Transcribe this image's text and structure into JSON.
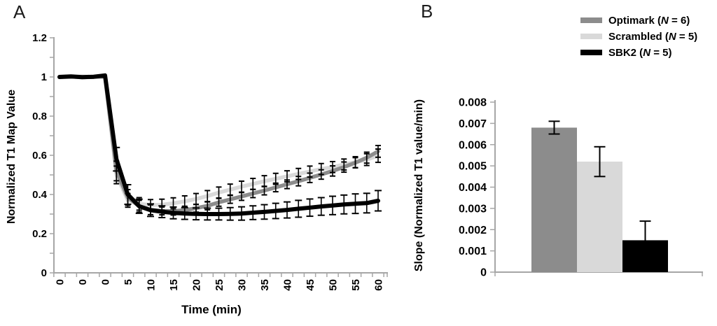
{
  "figure": {
    "panel_a_letter": "A",
    "panel_b_letter": "B"
  },
  "colors": {
    "axis": "#a6a6a6",
    "error_bar": "#000000",
    "optimark": "#8c8c8c",
    "scrambled": "#d9d9d9",
    "sbk2": "#000000"
  },
  "legend": {
    "items": [
      {
        "prefix": "Optimark (",
        "n": "N",
        "suffix": " = 6)",
        "color": "#8c8c8c"
      },
      {
        "prefix": "Scrambled (",
        "n": "N",
        "suffix": " = 5)",
        "color": "#d9d9d9"
      },
      {
        "prefix": "SBK2 (",
        "n": "N",
        "suffix": " = 5)",
        "color": "#000000"
      }
    ]
  },
  "chart_data": [
    {
      "type": "line",
      "panel": "A",
      "title": "",
      "xlabel": "Time (min)",
      "ylabel": "Normalized T1 Map Value",
      "ylim": [
        0,
        1.2
      ],
      "y_tick_labels": [
        "0",
        "0.2",
        "0.4",
        "0.6",
        "0.8",
        "1",
        "1.2"
      ],
      "y_minor_tick_step": 0.1,
      "x_tick_labels": [
        "0",
        "0",
        "0",
        "5",
        "10",
        "15",
        "20",
        "25",
        "30",
        "35",
        "40",
        "45",
        "50",
        "55",
        "60"
      ],
      "points_per_label_interval": 2,
      "grid": false,
      "series": [
        {
          "name": "Optimark (N = 6)",
          "color": "#8c8c8c",
          "line_width": 5.5,
          "cap_half_width": 4,
          "values": [
            1.0,
            1.002,
            0.998,
            1.0,
            1.003,
            0.52,
            0.385,
            0.34,
            0.322,
            0.316,
            0.315,
            0.32,
            0.33,
            0.342,
            0.36,
            0.375,
            0.39,
            0.405,
            0.42,
            0.436,
            0.452,
            0.468,
            0.485,
            0.502,
            0.52,
            0.54,
            0.562,
            0.588,
            0.62
          ],
          "err": [
            0.003,
            0.003,
            0.003,
            0.003,
            0.003,
            0.05,
            0.04,
            0.03,
            0.025,
            0.02,
            0.02,
            0.02,
            0.02,
            0.02,
            0.02,
            0.02,
            0.02,
            0.021,
            0.022,
            0.022,
            0.022,
            0.024,
            0.024,
            0.024,
            0.026,
            0.026,
            0.026,
            0.028,
            0.03
          ]
        },
        {
          "name": "Scrambled (N = 5)",
          "color": "#d9d9d9",
          "line_width": 5.5,
          "cap_half_width": 4,
          "values": [
            0.998,
            1.0,
            1.002,
            0.999,
            1.0,
            0.5,
            0.37,
            0.352,
            0.346,
            0.348,
            0.355,
            0.365,
            0.377,
            0.392,
            0.41,
            0.425,
            0.44,
            0.454,
            0.468,
            0.48,
            0.493,
            0.505,
            0.517,
            0.53,
            0.54,
            0.553,
            0.565,
            0.578,
            0.598
          ],
          "err": [
            0.003,
            0.003,
            0.003,
            0.003,
            0.003,
            0.045,
            0.035,
            0.032,
            0.028,
            0.028,
            0.028,
            0.028,
            0.028,
            0.028,
            0.028,
            0.028,
            0.028,
            0.028,
            0.028,
            0.028,
            0.028,
            0.028,
            0.028,
            0.028,
            0.028,
            0.028,
            0.028,
            0.03,
            0.034
          ]
        },
        {
          "name": "SBK2 (N = 5)",
          "color": "#000000",
          "line_width": 6,
          "cap_half_width": 5,
          "values": [
            1.0,
            1.003,
            0.999,
            1.001,
            1.008,
            0.58,
            0.4,
            0.34,
            0.32,
            0.312,
            0.306,
            0.303,
            0.301,
            0.3,
            0.3,
            0.301,
            0.303,
            0.307,
            0.311,
            0.316,
            0.321,
            0.327,
            0.333,
            0.339,
            0.344,
            0.349,
            0.353,
            0.356,
            0.368
          ],
          "err": [
            0.003,
            0.003,
            0.003,
            0.003,
            0.003,
            0.06,
            0.05,
            0.036,
            0.032,
            0.03,
            0.03,
            0.03,
            0.03,
            0.03,
            0.03,
            0.032,
            0.034,
            0.035,
            0.037,
            0.039,
            0.041,
            0.043,
            0.044,
            0.045,
            0.047,
            0.048,
            0.05,
            0.05,
            0.052
          ]
        }
      ]
    },
    {
      "type": "bar",
      "panel": "B",
      "title": "",
      "xlabel": "",
      "ylabel": "Slope (Normalized T1 value/min)",
      "ylim": [
        0,
        0.008
      ],
      "y_tick_labels": [
        "0",
        "0.001",
        "0.002",
        "0.003",
        "0.004",
        "0.005",
        "0.006",
        "0.007",
        "0.008"
      ],
      "categories": [
        "Optimark",
        "Scrambled",
        "SBK2"
      ],
      "values": [
        0.0068,
        0.0052,
        0.0015
      ],
      "errors": [
        0.0003,
        0.0007,
        0.0009
      ],
      "colors": [
        "#8c8c8c",
        "#d9d9d9",
        "#000000"
      ],
      "grid": false,
      "legend_position": "top-right"
    }
  ]
}
